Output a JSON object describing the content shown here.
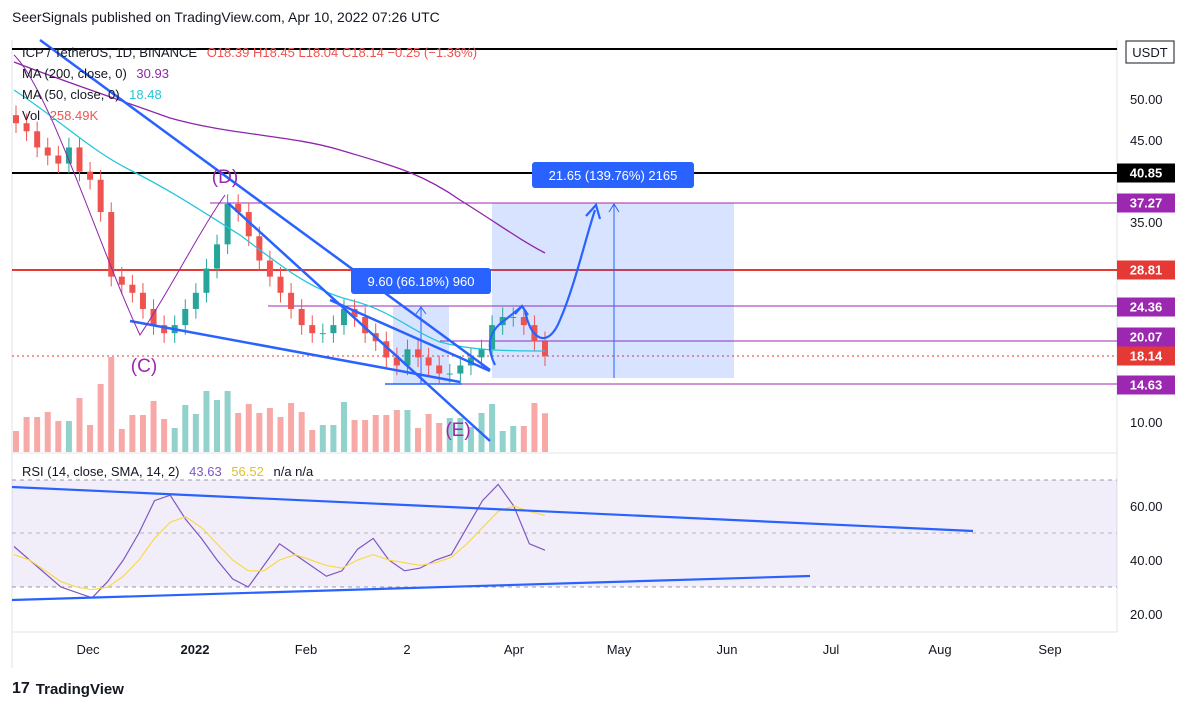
{
  "header": {
    "text": "SeerSignals published on TradingView.com, Apr 10, 2022 07:26 UTC"
  },
  "legend": {
    "symbol": "ICP / TetherUS, 1D, BINANCE",
    "ohlc": "O18.39 H18.45 L18.04 C18.14 −0.25 (−1.36%)",
    "ma200_label": "MA (200, close, 0)",
    "ma200_value": "30.93",
    "ma50_label": "MA (50, close, 0)",
    "ma50_value": "18.48",
    "vol_label": "Vol",
    "vol_value": "258.49K",
    "rsi_label": "RSI (14, close, SMA, 14, 2)",
    "rsi_value": "43.63",
    "rsi_ma_value": "56.52",
    "rsi_na": "n/a  n/a"
  },
  "currency": "USDT",
  "annotations": {
    "measure_small": "9.60 (66.18%) 960",
    "measure_big": "21.65 (139.76%) 2165",
    "wave_c": "(C)",
    "wave_d": "(D)",
    "wave_e": "(E)"
  },
  "footer": {
    "brand": "TradingView"
  },
  "colors": {
    "up": "#26a69a",
    "down": "#ef5350",
    "ma200": "#8e24aa",
    "ma50": "#26c6da",
    "trend": "#2962ff",
    "rsi": "#7e57c2",
    "rsi_ma": "#f9d94a"
  },
  "chart_data": [
    {
      "type": "candlestick",
      "title": "ICP / TetherUS, 1D, BINANCE",
      "x_ticks": [
        "Dec",
        "2022",
        "Feb",
        "2",
        "Apr",
        "May",
        "Jun",
        "Jul",
        "Aug",
        "Sep"
      ],
      "y_ticks": [
        10.0,
        35.0,
        45.0,
        50.0
      ],
      "price_levels": [
        {
          "value": 40.85,
          "label": "40.85",
          "color": "#000000"
        },
        {
          "value": 37.27,
          "label": "37.27",
          "color": "#9c27b0"
        },
        {
          "value": 28.81,
          "label": "28.81",
          "color": "#e53935"
        },
        {
          "value": 24.36,
          "label": "24.36",
          "color": "#9c27b0"
        },
        {
          "value": 20.07,
          "label": "20.07",
          "color": "#9c27b0"
        },
        {
          "value": 18.14,
          "label": "18.14",
          "color": "#e53935"
        },
        {
          "value": 14.63,
          "label": "14.63",
          "color": "#9c27b0"
        }
      ],
      "close_series": [
        47,
        46,
        44,
        43,
        42,
        44,
        41,
        40,
        36,
        28,
        27,
        26,
        24,
        22,
        21,
        22,
        24,
        26,
        29,
        32,
        37,
        36,
        33,
        30,
        28,
        26,
        24,
        22,
        21,
        21,
        22,
        24,
        23,
        21,
        20,
        18,
        17,
        19,
        18,
        17,
        16,
        16,
        17,
        18,
        19,
        22,
        23,
        23,
        22,
        20,
        18.14
      ],
      "ma200": [
        56,
        52,
        49,
        47,
        46,
        45,
        43,
        42,
        41,
        40,
        39.5,
        38,
        37,
        35,
        33,
        32,
        31
      ],
      "ma50": [
        44,
        40,
        36,
        33,
        31,
        29,
        28,
        27,
        25,
        24,
        23,
        22,
        21,
        20,
        19,
        18.6,
        18.5
      ],
      "current_price": 18.14
    },
    {
      "type": "line",
      "title": "RSI (14, close, SMA, 14, 2)",
      "y_ticks": [
        20.0,
        40.0,
        60.0
      ],
      "band": [
        30,
        70
      ],
      "series": [
        {
          "name": "RSI",
          "values": [
            45,
            40,
            35,
            30,
            28,
            26,
            32,
            40,
            50,
            62,
            64,
            55,
            48,
            40,
            33,
            30,
            38,
            46,
            42,
            38,
            34,
            36,
            44,
            48,
            40,
            36,
            37,
            40,
            42,
            52,
            62,
            68,
            60,
            46,
            43.63
          ]
        },
        {
          "name": "RSI MA",
          "values": [
            42,
            40,
            36,
            32,
            30,
            29,
            30,
            34,
            40,
            48,
            54,
            56,
            52,
            46,
            40,
            36,
            36,
            40,
            42,
            40,
            38,
            37,
            40,
            42,
            40,
            39,
            38,
            39,
            41,
            46,
            52,
            58,
            60,
            58,
            56.52
          ]
        }
      ]
    }
  ]
}
